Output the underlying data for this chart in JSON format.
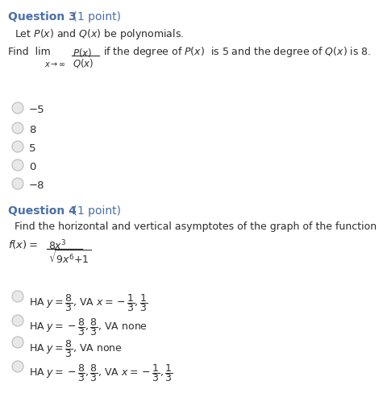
{
  "bg_color": "#ffffff",
  "title_color": "#4a6fa5",
  "body_color": "#2c2c2c",
  "option_color": "#2c2c2c",
  "circle_facecolor": "#e8e8e8",
  "circle_edgecolor": "#bbbbbb",
  "q3_title": "Question 3",
  "q3_points": " (1 point)",
  "q3_intro": "Let $P(x)$ and $Q(x)$ be polynomials.",
  "q3_find_pre": "Find  lim",
  "q3_options": [
    "−5",
    "8",
    "5",
    "0",
    "−8"
  ],
  "q4_title": "Question 4",
  "q4_points": " (1 point)",
  "q4_intro": "Find the horizontal and vertical asymptotes of the graph of the function"
}
